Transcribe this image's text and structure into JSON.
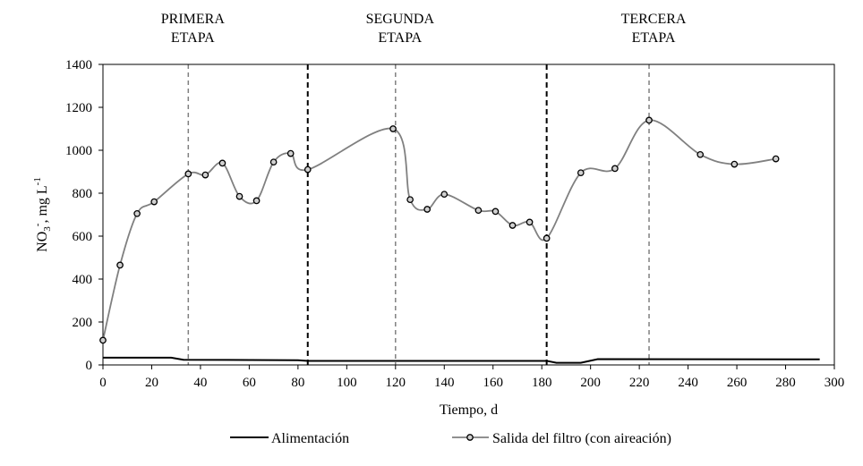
{
  "chart_data": {
    "type": "line",
    "title": "",
    "xlabel": "Tiempo, d",
    "ylabel": {
      "main": "NO",
      "sub": "3",
      "sup": "-",
      "unit_main": "mg L",
      "unit_sup": "-1"
    },
    "xlim": [
      0,
      300
    ],
    "ylim": [
      0,
      1400
    ],
    "xticks": [
      0,
      20,
      40,
      60,
      80,
      100,
      120,
      140,
      160,
      180,
      200,
      220,
      240,
      260,
      280,
      300
    ],
    "yticks": [
      0,
      200,
      400,
      600,
      800,
      1000,
      1200,
      1400
    ],
    "grid": false,
    "legend_position": "bottom",
    "stages": [
      {
        "line1": "PRIMERA",
        "line2": "ETAPA",
        "center_x": 35
      },
      {
        "line1": "SEGUNDA",
        "line2": "ETAPA",
        "center_x": 120
      },
      {
        "line1": "TERCERA",
        "line2": "ETAPA",
        "center_x": 224
      }
    ],
    "stage_boundaries": [
      84,
      182
    ],
    "stage_centers": [
      35,
      120,
      224
    ],
    "series": [
      {
        "name": "Alimentación",
        "color": "#000000",
        "markers": false,
        "smooth": false,
        "x": [
          0,
          28,
          33,
          80,
          84,
          182,
          186,
          196,
          203,
          294
        ],
        "y": [
          34,
          34,
          24,
          22,
          19,
          19,
          10,
          10,
          27,
          26
        ]
      },
      {
        "name": "Salida del filtro (con aireación)",
        "color": "#808080",
        "markers": true,
        "smooth": true,
        "x": [
          0,
          7,
          14,
          21,
          35,
          42,
          49,
          56,
          63,
          70,
          77,
          84,
          119,
          126,
          133,
          140,
          154,
          161,
          168,
          175,
          182,
          196,
          210,
          224,
          245,
          259,
          276
        ],
        "y": [
          115,
          465,
          705,
          760,
          890,
          885,
          940,
          785,
          765,
          945,
          985,
          910,
          1100,
          770,
          725,
          795,
          720,
          715,
          650,
          665,
          590,
          895,
          915,
          1140,
          980,
          935,
          960
        ]
      }
    ]
  }
}
